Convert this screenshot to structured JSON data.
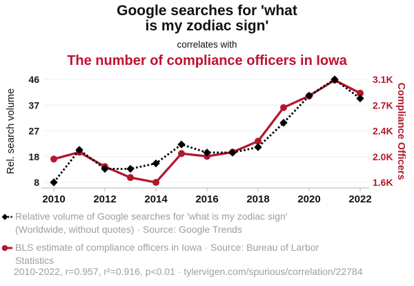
{
  "header": {
    "title_line1": "Google searches for 'what",
    "title_line2": "is my zodiac sign'",
    "subtitle": "correlates with",
    "red_title": "The number of compliance officers in Iowa",
    "red_title_color": "#c2102f"
  },
  "chart_data": {
    "type": "line",
    "x": [
      2010,
      2011,
      2012,
      2013,
      2014,
      2015,
      2016,
      2017,
      2018,
      2019,
      2020,
      2021,
      2022
    ],
    "x_tick_labels": [
      "2010",
      "2012",
      "2014",
      "2016",
      "2018",
      "2020",
      "2022"
    ],
    "series": [
      {
        "name": "Relative volume of Google searches for 'what is my zodiac sign'",
        "axis": "left",
        "color": "#000000",
        "marker": "diamond",
        "line_style": "dashed",
        "values": [
          8,
          20,
          13,
          13,
          15,
          22,
          19,
          19,
          21,
          30,
          40,
          46,
          39
        ]
      },
      {
        "name": "BLS estimate of compliance officers in Iowa",
        "axis": "right",
        "color": "#b2182b",
        "marker": "circle",
        "line_style": "solid",
        "values": [
          1940,
          2040,
          1830,
          1670,
          1600,
          2020,
          1980,
          2040,
          2200,
          2690,
          2860,
          3090,
          2900
        ]
      }
    ],
    "left_axis": {
      "label": "Rel. search volume",
      "tick_labels": [
        "46",
        "37",
        "27",
        "18",
        "8"
      ],
      "min": 8,
      "max": 46
    },
    "right_axis": {
      "label": "Compliance Officers",
      "tick_labels": [
        "3.1K",
        "2.7K",
        "2.4K",
        "2.0K",
        "1.6K"
      ],
      "min": 1600,
      "max": 3100
    },
    "grid": true,
    "legend_position": "bottom"
  },
  "colors": {
    "red": "#b2182b",
    "grid": "#ececec",
    "axis_line": "#b3b3b3",
    "tick_text": "#1a1a1a",
    "legend_text": "#9e9e9e"
  },
  "legend": {
    "items": [
      {
        "marker": "black-diamond-dashed",
        "lines": [
          "Relative volume of Google searches for 'what is my zodiac sign'",
          "(Worldwide, without quotes) · Source: Google Trends"
        ]
      },
      {
        "marker": "red-circle-solid",
        "lines": [
          "BLS estimate of compliance officers in Iowa · Source: Bureau of Larbor",
          "Statistics"
        ]
      }
    ]
  },
  "footer": {
    "text": "2010-2022, r=0.957, r²=0.916, p<0.01 · tylervigen.com/spurious/correlation/22784"
  }
}
